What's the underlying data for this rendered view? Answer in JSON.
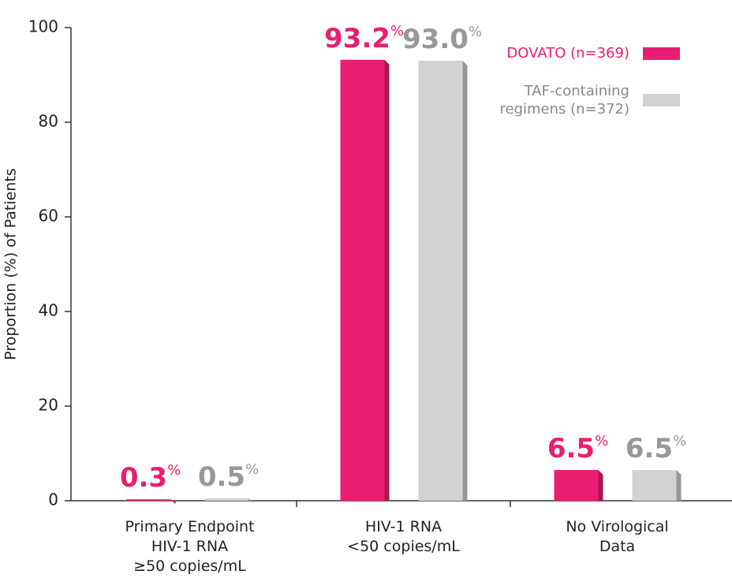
{
  "chart_data": {
    "type": "bar",
    "y_label": "Proportion (%) of Patients",
    "categories": [
      "Primary Endpoint\nHIV-1 RNA\n≥50 copies/mL",
      "HIV-1 RNA\n<50 copies/mL",
      "No Virological\nData"
    ],
    "series": [
      {
        "name": "DOVATO (n=369)",
        "color": "#e91e72",
        "values": [
          0.3,
          93.2,
          6.5
        ],
        "value_labels": [
          "0.3%",
          "93.2%",
          "6.5%"
        ]
      },
      {
        "name": "TAF-containing\nregimens (n=372)",
        "color": "#d1d2d4",
        "values": [
          0.5,
          93.0,
          6.5
        ],
        "value_labels": [
          "0.5%",
          "93.0%",
          "6.5%"
        ]
      }
    ],
    "ylim": [
      0,
      100
    ],
    "yticks": [
      0,
      20,
      40,
      60,
      80,
      100
    ]
  }
}
